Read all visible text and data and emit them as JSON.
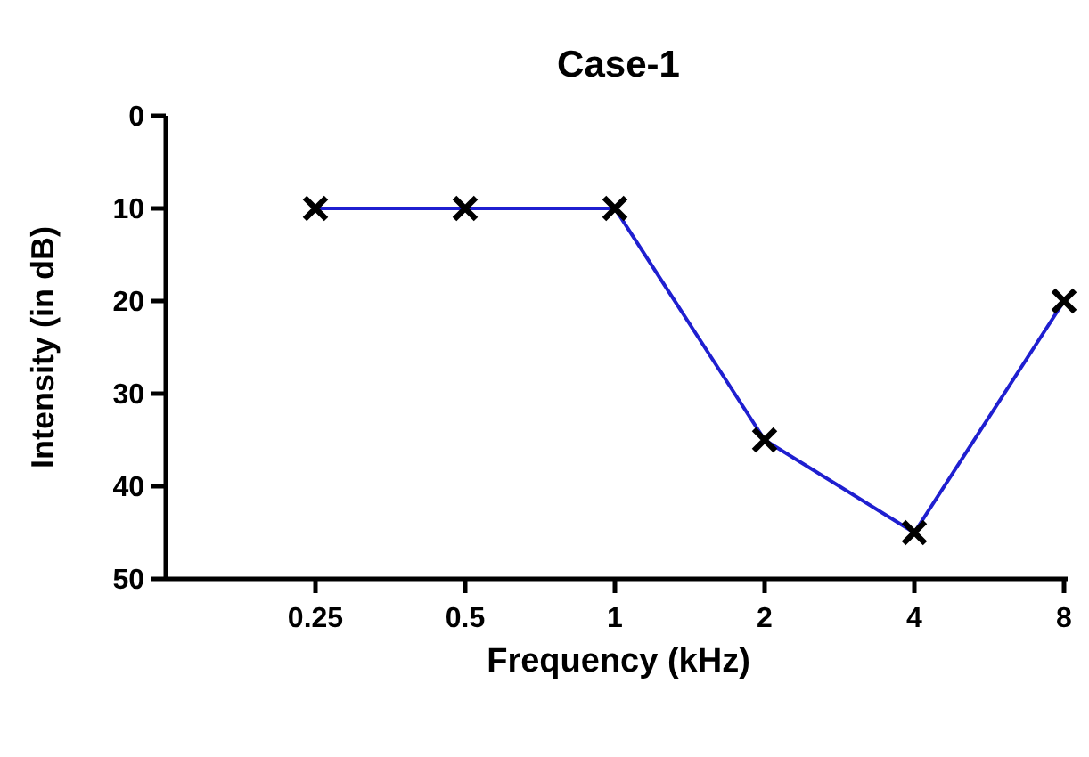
{
  "chart_data": {
    "type": "line",
    "title": "Case-1",
    "xlabel": "Frequency (kHz)",
    "ylabel": "Intensity (in dB)",
    "categories": [
      "0.25",
      "0.5",
      "1",
      "2",
      "4",
      "8"
    ],
    "series": [
      {
        "color": "#1f1fd0",
        "values": [
          10,
          10,
          10,
          35,
          45,
          20
        ]
      }
    ],
    "ylim": [
      50,
      0
    ],
    "yticks": [
      0,
      10,
      20,
      30,
      40,
      50
    ],
    "marker": "cross",
    "line_style": "solid",
    "grid": false
  }
}
